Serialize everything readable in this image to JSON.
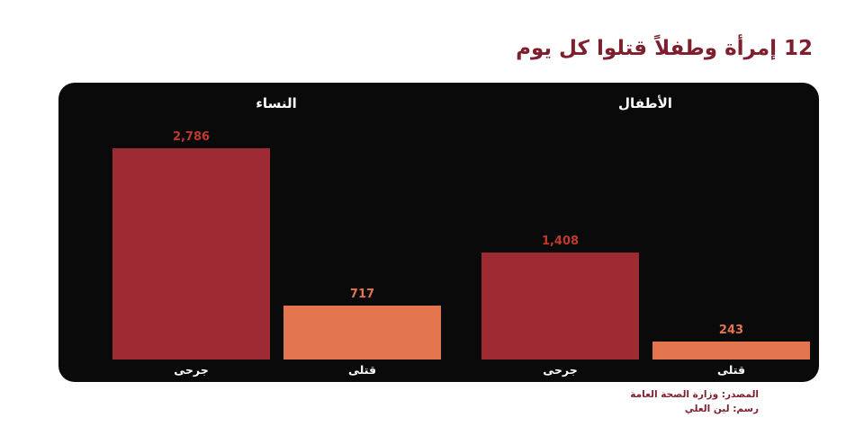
{
  "title": "12 إمرأة وطفلاً قتلوا كل يوم",
  "colors": {
    "title": "#7E1F2D",
    "panel_bg": "#0A0A0A",
    "dark_red": "#9E2B33",
    "orange": "#E2744E",
    "value_red": "#C0392F",
    "white": "#FFFFFF",
    "footer": "#7E1F2D"
  },
  "chart_data": {
    "type": "bar",
    "title": "12 إمرأة وطفلاً قتلوا كل يوم",
    "ylim": [
      0,
      2786
    ],
    "grid": false,
    "legend": false,
    "background": "#0A0A0A",
    "groups": [
      {
        "label": "النساء",
        "bars": [
          {
            "category": "جرحى",
            "value": 2786,
            "display": "2,786",
            "color": "#9E2B33",
            "label_color": "#C0392F"
          },
          {
            "category": "قتلى",
            "value": 717,
            "display": "717",
            "color": "#E2744E",
            "label_color": "#E2744E"
          }
        ]
      },
      {
        "label": "الأطفال",
        "bars": [
          {
            "category": "جرحى",
            "value": 1408,
            "display": "1,408",
            "color": "#9E2B33",
            "label_color": "#C0392F"
          },
          {
            "category": "قتلى",
            "value": 243,
            "display": "243",
            "color": "#E2744E",
            "label_color": "#E2744E"
          }
        ]
      }
    ]
  },
  "footer": {
    "source": "المصدر: وزارة الصحة العامة",
    "credit": "رسم: لين العلي"
  }
}
